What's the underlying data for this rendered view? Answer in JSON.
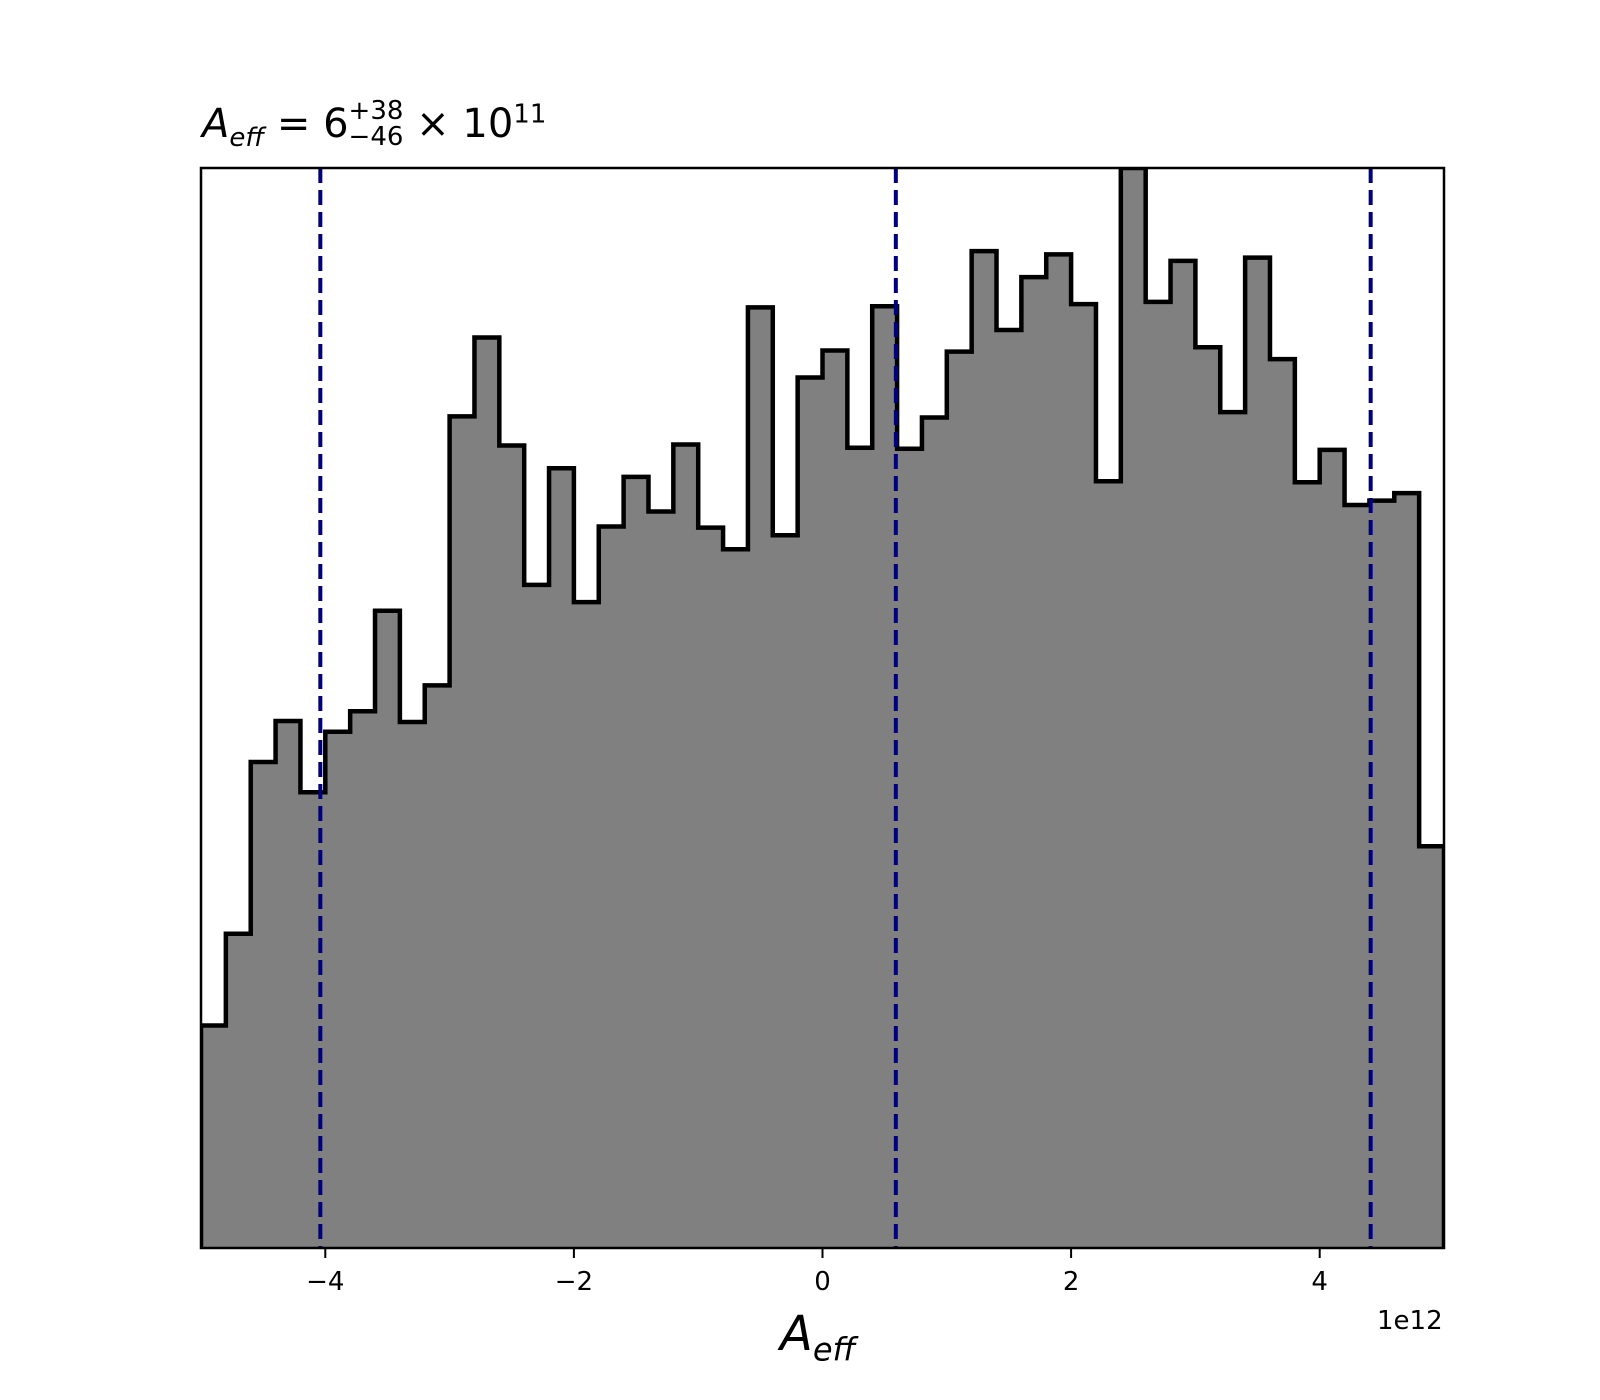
{
  "chart_data": {
    "type": "histogram",
    "title": {
      "symbol": "A",
      "subscript": "eff",
      "equals": "=",
      "median": "6",
      "upper": "+38",
      "lower": "−46",
      "multiplier": "× 10",
      "exponent": "11"
    },
    "xlabel": {
      "symbol": "A",
      "subscript": "eff"
    },
    "ylabel": "",
    "x_offset_label": "1e12",
    "xlim": [
      -5.0,
      5.0
    ],
    "ylim": [
      0,
      1
    ],
    "x_ticks": [
      -4,
      -2,
      0,
      2,
      4
    ],
    "x_tick_labels": [
      "−4",
      "−2",
      "0",
      "2",
      "4"
    ],
    "y_axis_visible": false,
    "bin_edges_x1e12": [
      -5.0,
      -4.8,
      -4.6,
      -4.4,
      -4.2,
      -4.0,
      -3.8,
      -3.6,
      -3.4,
      -3.2,
      -3.0,
      -2.8,
      -2.6,
      -2.4,
      -2.2,
      -2.0,
      -1.8,
      -1.6,
      -1.4,
      -1.2,
      -1.0,
      -0.8,
      -0.6,
      -0.4,
      -0.2,
      0.0,
      0.2,
      0.4,
      0.6,
      0.8,
      1.0,
      1.2,
      1.4,
      1.6,
      1.8,
      2.0,
      2.2,
      2.4,
      2.6,
      2.8,
      3.0,
      3.2,
      3.4,
      3.6,
      3.8,
      4.0,
      4.2,
      4.4,
      4.6,
      4.8,
      5.0
    ],
    "bin_heights_relative": [
      0.206,
      0.291,
      0.45,
      0.488,
      0.422,
      0.478,
      0.497,
      0.59,
      0.487,
      0.521,
      0.77,
      0.843,
      0.743,
      0.614,
      0.722,
      0.598,
      0.668,
      0.714,
      0.682,
      0.744,
      0.667,
      0.647,
      0.871,
      0.66,
      0.806,
      0.831,
      0.741,
      0.872,
      0.74,
      0.769,
      0.83,
      0.923,
      0.85,
      0.899,
      0.92,
      0.874,
      0.71,
      1.0,
      0.876,
      0.914,
      0.834,
      0.774,
      0.917,
      0.823,
      0.709,
      0.739,
      0.688,
      0.692,
      0.699,
      0.372
    ],
    "fill_color": "#808080",
    "edge_color": "#000000",
    "reference_lines": {
      "x_values_x1e12": [
        -4.04,
        0.59,
        4.41
      ],
      "style": "dashed",
      "color": "#00007f"
    },
    "grid": false,
    "legend": "none"
  }
}
